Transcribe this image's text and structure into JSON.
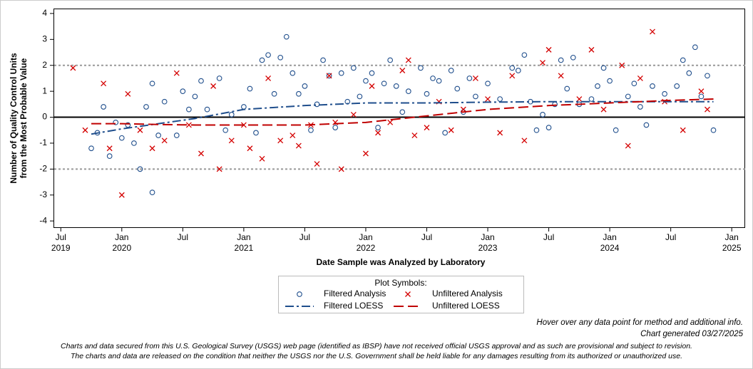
{
  "chart_data": {
    "type": "scatter",
    "xlabel": "Date Sample was Analyzed by Laboratory",
    "ylabel": [
      "Number of Quality Control Units",
      "from the Most Probable Value"
    ],
    "xlim": [
      2019.44,
      2025.11
    ],
    "ylim": [
      -4.27,
      4.19
    ],
    "xticks": [
      {
        "value": 2019.5,
        "label": "Jul",
        "sublabel": "2019"
      },
      {
        "value": 2020.0,
        "label": "Jan",
        "sublabel": "2020"
      },
      {
        "value": 2020.5,
        "label": "Jul"
      },
      {
        "value": 2021.0,
        "label": "Jan",
        "sublabel": "2021"
      },
      {
        "value": 2021.5,
        "label": "Jul"
      },
      {
        "value": 2022.0,
        "label": "Jan",
        "sublabel": "2022"
      },
      {
        "value": 2022.5,
        "label": "Jul"
      },
      {
        "value": 2023.0,
        "label": "Jan",
        "sublabel": "2023"
      },
      {
        "value": 2023.5,
        "label": "Jul"
      },
      {
        "value": 2024.0,
        "label": "Jan",
        "sublabel": "2024"
      },
      {
        "value": 2024.5,
        "label": "Jul"
      },
      {
        "value": 2025.0,
        "label": "Jan",
        "sublabel": "2025"
      }
    ],
    "yticks": [
      -4,
      -3,
      -2,
      -1,
      0,
      1,
      2,
      3,
      4
    ],
    "reference_lines": [
      {
        "value": 2,
        "style": "dashed"
      },
      {
        "value": -2,
        "style": "dashed"
      },
      {
        "value": 0,
        "style": "solid"
      }
    ],
    "legend_title": "Plot Symbols:",
    "series": [
      {
        "name": "Filtered Analysis",
        "color": "#1f4e8c",
        "marker": "circle",
        "x": [
          2019.75,
          2019.8,
          2019.85,
          2019.9,
          2019.95,
          2020.0,
          2020.05,
          2020.1,
          2020.15,
          2020.2,
          2020.25,
          2020.25,
          2020.3,
          2020.35,
          2020.45,
          2020.5,
          2020.55,
          2020.6,
          2020.65,
          2020.7,
          2020.8,
          2020.85,
          2020.9,
          2021.0,
          2021.05,
          2021.1,
          2021.15,
          2021.2,
          2021.25,
          2021.3,
          2021.35,
          2021.4,
          2021.45,
          2021.5,
          2021.55,
          2021.6,
          2021.65,
          2021.7,
          2021.75,
          2021.8,
          2021.85,
          2021.9,
          2021.95,
          2022.0,
          2022.05,
          2022.1,
          2022.15,
          2022.2,
          2022.25,
          2022.3,
          2022.35,
          2022.45,
          2022.5,
          2022.55,
          2022.6,
          2022.65,
          2022.7,
          2022.75,
          2022.8,
          2022.85,
          2022.9,
          2023.0,
          2023.1,
          2023.2,
          2023.25,
          2023.3,
          2023.35,
          2023.4,
          2023.45,
          2023.5,
          2023.55,
          2023.6,
          2023.65,
          2023.7,
          2023.75,
          2023.85,
          2023.9,
          2023.95,
          2024.0,
          2024.05,
          2024.15,
          2024.2,
          2024.25,
          2024.3,
          2024.35,
          2024.45,
          2024.55,
          2024.6,
          2024.65,
          2024.7,
          2024.75,
          2024.8,
          2024.85
        ],
        "values": [
          -1.2,
          -0.6,
          0.4,
          -1.5,
          -0.2,
          -0.8,
          -0.3,
          -1.0,
          -2.0,
          0.4,
          -2.9,
          1.3,
          -0.7,
          0.6,
          -0.7,
          1.0,
          0.3,
          0.8,
          1.4,
          0.3,
          1.5,
          -0.5,
          0.1,
          0.4,
          1.1,
          -0.6,
          2.2,
          2.4,
          0.9,
          2.3,
          3.1,
          1.7,
          0.9,
          1.2,
          -0.5,
          0.5,
          2.2,
          1.6,
          -0.4,
          1.7,
          0.6,
          1.9,
          0.8,
          1.4,
          1.7,
          -0.4,
          1.3,
          2.2,
          1.2,
          0.2,
          1.0,
          1.9,
          0.9,
          1.5,
          1.4,
          -0.6,
          1.8,
          1.1,
          0.2,
          1.5,
          0.8,
          1.3,
          0.7,
          1.9,
          1.8,
          2.4,
          0.6,
          -0.5,
          0.1,
          -0.4,
          0.5,
          2.2,
          1.1,
          2.3,
          0.5,
          0.7,
          1.2,
          1.9,
          1.4,
          -0.5,
          0.8,
          1.3,
          0.4,
          -0.3,
          1.2,
          0.9,
          1.2,
          2.2,
          1.7,
          2.7,
          0.8,
          1.6,
          -0.5
        ]
      },
      {
        "name": "Unfiltered Analysis",
        "color": "#d40000",
        "marker": "x",
        "x": [
          2019.6,
          2019.7,
          2019.85,
          2019.9,
          2020.0,
          2020.05,
          2020.15,
          2020.25,
          2020.35,
          2020.45,
          2020.55,
          2020.65,
          2020.75,
          2020.8,
          2020.9,
          2021.0,
          2021.05,
          2021.15,
          2021.2,
          2021.3,
          2021.4,
          2021.45,
          2021.55,
          2021.6,
          2021.7,
          2021.75,
          2021.8,
          2021.9,
          2022.0,
          2022.05,
          2022.1,
          2022.2,
          2022.3,
          2022.35,
          2022.4,
          2022.5,
          2022.6,
          2022.7,
          2022.8,
          2022.9,
          2023.0,
          2023.1,
          2023.2,
          2023.3,
          2023.45,
          2023.5,
          2023.6,
          2023.75,
          2023.85,
          2023.95,
          2024.1,
          2024.15,
          2024.25,
          2024.35,
          2024.45,
          2024.6,
          2024.75,
          2024.8
        ],
        "values": [
          1.9,
          -0.5,
          1.3,
          -1.2,
          -3.0,
          0.9,
          -0.5,
          -1.2,
          -0.9,
          1.7,
          -0.3,
          -1.4,
          1.2,
          -2.0,
          -0.9,
          -0.3,
          -1.2,
          -1.6,
          1.5,
          -0.9,
          -0.7,
          -1.1,
          -0.3,
          -1.8,
          1.6,
          -0.2,
          -2.0,
          0.1,
          -1.4,
          1.2,
          -0.6,
          -0.2,
          1.8,
          2.2,
          -0.7,
          -0.4,
          0.6,
          -0.5,
          0.3,
          1.5,
          0.7,
          -0.6,
          1.6,
          -0.9,
          2.1,
          2.6,
          1.6,
          0.7,
          2.6,
          0.3,
          2.0,
          -1.1,
          1.5,
          3.3,
          0.6,
          -0.5,
          1.0,
          0.3
        ]
      },
      {
        "name": "Filtered LOESS",
        "color": "#1f4e8c",
        "marker": "line",
        "dash": "12 4 3 4",
        "x": [
          2019.75,
          2020.0,
          2020.3,
          2020.6,
          2021.0,
          2021.5,
          2022.0,
          2022.5,
          2023.0,
          2023.5,
          2024.0,
          2024.5,
          2024.85
        ],
        "values": [
          -0.65,
          -0.45,
          -0.25,
          -0.05,
          0.3,
          0.45,
          0.55,
          0.55,
          0.58,
          0.6,
          0.6,
          0.6,
          0.6
        ]
      },
      {
        "name": "Unfiltered LOESS",
        "color": "#c00000",
        "marker": "line",
        "dash": "14 6",
        "x": [
          2019.75,
          2020.0,
          2020.3,
          2020.6,
          2021.0,
          2021.5,
          2022.0,
          2022.5,
          2023.0,
          2023.5,
          2024.0,
          2024.5,
          2024.85
        ],
        "values": [
          -0.25,
          -0.25,
          -0.28,
          -0.3,
          -0.3,
          -0.3,
          -0.2,
          0.05,
          0.3,
          0.45,
          0.55,
          0.65,
          0.7
        ]
      }
    ]
  },
  "notes": [
    "Hover over any data point for method and additional info.",
    "Chart generated 03/27/2025"
  ],
  "disclaimer": [
    "Charts and data secured from this U.S. Geological Survey (USGS) web page (identified as IBSP) have not received official USGS approval and as such are provisional and subject to revision.",
    "The charts and data are released on the condition that neither the USGS nor the U.S. Government shall be held liable for any damages resulting from its authorized or unauthorized use."
  ]
}
